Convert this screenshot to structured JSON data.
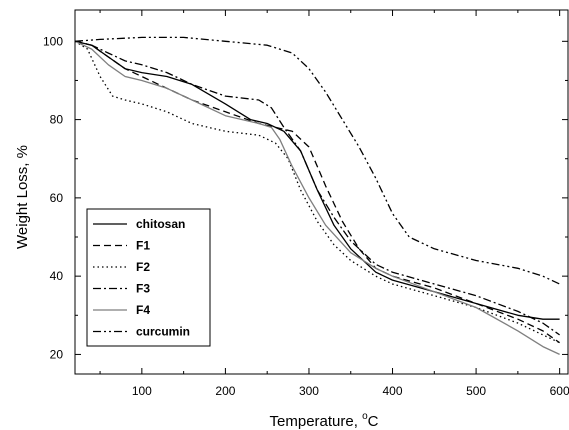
{
  "chart_data": {
    "type": "line",
    "xlabel": "Temperature, ",
    "xlabel_unit": "C",
    "xlabel_superscript": "o",
    "ylabel": "Weight Loss, %",
    "xlim": [
      20,
      610
    ],
    "ylim": [
      15,
      108
    ],
    "xticks": [
      100,
      200,
      300,
      400,
      500,
      600
    ],
    "yticks": [
      20,
      40,
      60,
      80,
      100
    ],
    "x_tick_labels": [
      "100",
      "200",
      "300",
      "400",
      "500",
      "600"
    ],
    "y_tick_labels": [
      "20",
      "40",
      "60",
      "80",
      "100"
    ],
    "grid": false,
    "legend_position": "bottom-left",
    "series": [
      {
        "name": "chitosan",
        "color": "#000000",
        "dash": "solid",
        "points": [
          [
            20,
            100
          ],
          [
            40,
            99
          ],
          [
            60,
            96
          ],
          [
            80,
            93
          ],
          [
            100,
            92
          ],
          [
            130,
            91
          ],
          [
            160,
            89
          ],
          [
            200,
            84
          ],
          [
            230,
            80
          ],
          [
            250,
            79
          ],
          [
            270,
            77
          ],
          [
            290,
            72
          ],
          [
            310,
            62
          ],
          [
            330,
            53
          ],
          [
            350,
            47
          ],
          [
            380,
            41
          ],
          [
            400,
            39
          ],
          [
            450,
            36
          ],
          [
            500,
            33
          ],
          [
            550,
            30
          ],
          [
            580,
            29
          ],
          [
            600,
            29
          ]
        ]
      },
      {
        "name": "F1",
        "color": "#000000",
        "dash": "dashed",
        "points": [
          [
            20,
            100
          ],
          [
            40,
            99
          ],
          [
            60,
            96
          ],
          [
            80,
            93
          ],
          [
            100,
            91
          ],
          [
            130,
            88
          ],
          [
            160,
            85
          ],
          [
            200,
            82
          ],
          [
            240,
            79
          ],
          [
            260,
            78
          ],
          [
            280,
            77
          ],
          [
            300,
            73
          ],
          [
            320,
            63
          ],
          [
            340,
            54
          ],
          [
            360,
            47
          ],
          [
            380,
            42
          ],
          [
            400,
            40
          ],
          [
            450,
            37
          ],
          [
            500,
            33
          ],
          [
            550,
            29
          ],
          [
            580,
            26
          ],
          [
            600,
            23
          ]
        ]
      },
      {
        "name": "F2",
        "color": "#000000",
        "dash": "dotted",
        "points": [
          [
            20,
            100
          ],
          [
            35,
            98
          ],
          [
            50,
            91
          ],
          [
            65,
            86
          ],
          [
            80,
            85
          ],
          [
            100,
            84
          ],
          [
            130,
            82
          ],
          [
            160,
            79
          ],
          [
            200,
            77
          ],
          [
            240,
            76
          ],
          [
            260,
            74
          ],
          [
            275,
            70
          ],
          [
            290,
            62
          ],
          [
            310,
            54
          ],
          [
            330,
            48
          ],
          [
            350,
            44
          ],
          [
            380,
            40
          ],
          [
            400,
            38
          ],
          [
            450,
            35
          ],
          [
            500,
            32
          ],
          [
            550,
            28
          ],
          [
            580,
            25
          ],
          [
            600,
            23
          ]
        ]
      },
      {
        "name": "F3",
        "color": "#000000",
        "dash": "dashdot",
        "points": [
          [
            20,
            100
          ],
          [
            40,
            99
          ],
          [
            60,
            97
          ],
          [
            80,
            95
          ],
          [
            100,
            94
          ],
          [
            130,
            92
          ],
          [
            160,
            89
          ],
          [
            200,
            86
          ],
          [
            240,
            85
          ],
          [
            255,
            83
          ],
          [
            270,
            78
          ],
          [
            290,
            72
          ],
          [
            310,
            62
          ],
          [
            330,
            55
          ],
          [
            350,
            49
          ],
          [
            380,
            43
          ],
          [
            400,
            41
          ],
          [
            450,
            38
          ],
          [
            500,
            35
          ],
          [
            550,
            31
          ],
          [
            580,
            28
          ],
          [
            600,
            25
          ]
        ]
      },
      {
        "name": "F4",
        "color": "#7f7f7f",
        "dash": "solid",
        "points": [
          [
            20,
            100
          ],
          [
            40,
            98
          ],
          [
            60,
            94
          ],
          [
            80,
            91
          ],
          [
            100,
            90
          ],
          [
            130,
            88
          ],
          [
            160,
            85
          ],
          [
            200,
            81
          ],
          [
            240,
            79
          ],
          [
            255,
            78
          ],
          [
            265,
            75
          ],
          [
            280,
            68
          ],
          [
            300,
            60
          ],
          [
            320,
            53
          ],
          [
            350,
            46
          ],
          [
            380,
            42
          ],
          [
            400,
            40
          ],
          [
            450,
            36
          ],
          [
            500,
            32
          ],
          [
            550,
            26
          ],
          [
            580,
            22
          ],
          [
            600,
            20
          ]
        ]
      },
      {
        "name": "curcumin",
        "color": "#000000",
        "dash": "dashdotdot",
        "points": [
          [
            20,
            100
          ],
          [
            50,
            100.5
          ],
          [
            100,
            101
          ],
          [
            150,
            101
          ],
          [
            200,
            100
          ],
          [
            250,
            99
          ],
          [
            280,
            97
          ],
          [
            300,
            93
          ],
          [
            320,
            87
          ],
          [
            340,
            80
          ],
          [
            360,
            73
          ],
          [
            380,
            65
          ],
          [
            400,
            56
          ],
          [
            420,
            50
          ],
          [
            450,
            47
          ],
          [
            500,
            44
          ],
          [
            550,
            42
          ],
          [
            580,
            40
          ],
          [
            600,
            38
          ]
        ]
      }
    ]
  }
}
